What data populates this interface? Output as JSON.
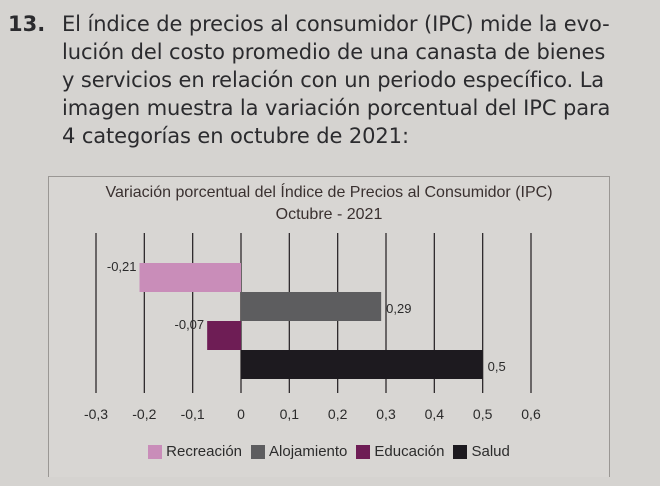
{
  "question": {
    "number": "13.",
    "lines": [
      "El índice de precios al consumidor (IPC) mide la evo-",
      "lución del costo promedio de una canasta de bienes",
      "y servicios en relación con un periodo específico. La",
      "imagen muestra la variación porcentual del IPC para",
      "4 categorías en octubre de 2021:"
    ]
  },
  "chart_data": {
    "type": "bar",
    "orientation": "horizontal",
    "title": "Variación porcentual del Índice de Precios al Consumidor (IPC)",
    "subtitle": "Octubre - 2021",
    "categories": [
      "Recreación",
      "Alojamiento",
      "Educación",
      "Salud"
    ],
    "values": [
      -0.21,
      0.29,
      -0.07,
      0.5
    ],
    "data_labels": [
      "-0,21",
      "0,29",
      "-0,07",
      "0,5"
    ],
    "colors": [
      "#c98db9",
      "#5d5d5f",
      "#6e1d55",
      "#1d1a1f"
    ],
    "xlim": [
      -0.3,
      0.6
    ],
    "xticks": [
      -0.3,
      -0.2,
      -0.1,
      0,
      0.1,
      0.2,
      0.3,
      0.4,
      0.5,
      0.6
    ],
    "xtick_labels": [
      "-0,3",
      "-0,2",
      "-0,1",
      "0",
      "0,1",
      "0,2",
      "0,3",
      "0,4",
      "0,5",
      "0,6"
    ],
    "grid": true,
    "legend_placement": "bottom"
  }
}
